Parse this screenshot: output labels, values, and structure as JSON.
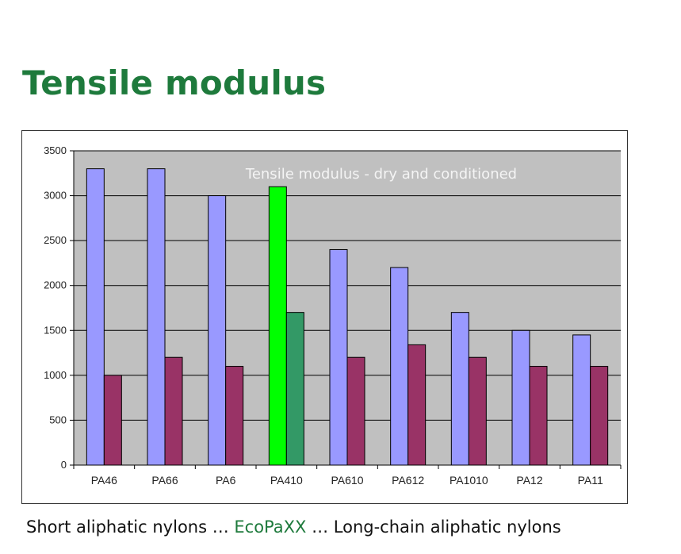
{
  "slide": {
    "title": "Tensile modulus",
    "caption_left": "Short aliphatic nylons … ",
    "caption_mid": "EcoPaXX",
    "caption_right": " … Long-chain aliphatic nylons"
  },
  "colors": {
    "title_green": "#1e7a3c",
    "plot_bg": "#c0c0c0",
    "dry": "#9999ff",
    "conditioned": "#993366",
    "highlight_dry": "#00ff00",
    "highlight_conditioned": "#339966"
  },
  "chart_data": {
    "type": "bar",
    "title": "Tensile modulus - dry and conditioned",
    "categories": [
      "PA46",
      "PA66",
      "PA6",
      "PA410",
      "PA610",
      "PA612",
      "PA1010",
      "PA12",
      "PA11"
    ],
    "series": [
      {
        "values": [
          3300,
          3300,
          3000,
          3100,
          2400,
          2200,
          1700,
          1500,
          1450
        ]
      },
      {
        "values": [
          1000,
          1200,
          1100,
          1700,
          1200,
          1340,
          1200,
          1100,
          1100
        ]
      }
    ],
    "highlight_category": "PA410",
    "ylim": [
      0,
      3500
    ],
    "yticks": [
      0,
      500,
      1000,
      1500,
      2000,
      2500,
      3000,
      3500
    ],
    "grid": true,
    "legend": "none"
  }
}
